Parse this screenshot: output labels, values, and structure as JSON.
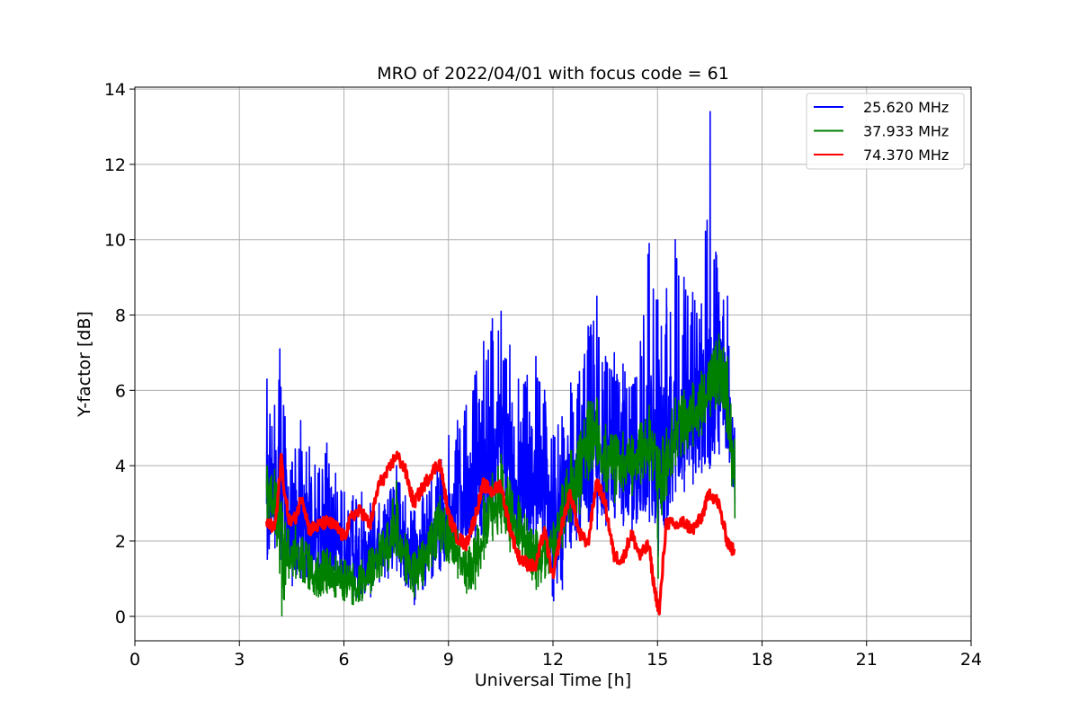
{
  "chart_data": {
    "type": "line",
    "title": "MRO of 2022/04/01 with focus code = 61",
    "xlabel": "Universal Time [h]",
    "ylabel": "Y-factor [dB]",
    "xlim": [
      0,
      24
    ],
    "ylim": [
      -0.65,
      14.05
    ],
    "xticks": [
      0,
      3,
      6,
      9,
      12,
      15,
      18,
      21,
      24
    ],
    "xtick_labels": [
      "0",
      "3",
      "6",
      "9",
      "12",
      "15",
      "18",
      "21",
      "24"
    ],
    "yticks": [
      0,
      2,
      4,
      6,
      8,
      10,
      12,
      14
    ],
    "ytick_labels": [
      "0",
      "2",
      "4",
      "6",
      "8",
      "10",
      "12",
      "14"
    ],
    "grid": true,
    "legend_position": "top-right",
    "series": [
      {
        "name": "25.620 MHz",
        "color": "#0000ff",
        "x": [
          3.78,
          4.0,
          4.15,
          4.3,
          4.5,
          4.75,
          5.0,
          5.25,
          5.5,
          5.75,
          6.0,
          6.25,
          6.5,
          6.75,
          7.0,
          7.25,
          7.5,
          7.75,
          8.0,
          8.25,
          8.5,
          8.75,
          9.0,
          9.25,
          9.5,
          9.75,
          10.0,
          10.25,
          10.5,
          10.75,
          11.0,
          11.25,
          11.5,
          11.75,
          12.0,
          12.25,
          12.5,
          12.75,
          13.0,
          13.25,
          13.5,
          13.75,
          14.0,
          14.25,
          14.5,
          14.75,
          15.0,
          15.25,
          15.5,
          15.75,
          16.0,
          16.25,
          16.5,
          16.75,
          17.0,
          17.2
        ],
        "mid": [
          3.5,
          3.2,
          3.6,
          3.0,
          2.2,
          2.5,
          2.3,
          2.1,
          2.0,
          1.9,
          1.6,
          1.7,
          1.5,
          1.6,
          1.8,
          2.0,
          2.4,
          1.9,
          1.4,
          1.8,
          2.1,
          2.3,
          2.5,
          3.0,
          3.2,
          3.5,
          3.9,
          4.3,
          4.7,
          4.2,
          3.8,
          3.5,
          4.0,
          3.5,
          2.5,
          2.8,
          3.3,
          3.5,
          4.0,
          4.2,
          3.9,
          4.1,
          3.7,
          3.5,
          4.0,
          4.6,
          4.3,
          4.5,
          5.0,
          5.1,
          5.3,
          5.6,
          6.2,
          6.4,
          6.0,
          4.2
        ],
        "low": [
          1.5,
          1.8,
          1.5,
          1.2,
          0.8,
          1.0,
          0.9,
          0.9,
          0.8,
          0.8,
          0.6,
          0.5,
          0.4,
          0.5,
          0.9,
          1.0,
          1.2,
          0.8,
          0.3,
          0.7,
          1.0,
          1.2,
          1.5,
          2.0,
          1.8,
          1.7,
          2.1,
          2.5,
          2.6,
          2.4,
          2.0,
          1.6,
          2.2,
          1.9,
          0.4,
          0.7,
          1.8,
          2.0,
          2.5,
          2.3,
          2.4,
          2.6,
          2.4,
          2.0,
          2.8,
          2.5,
          1.6,
          2.5,
          3.3,
          3.3,
          3.5,
          3.8,
          4.1,
          4.3,
          4.5,
          3.0
        ],
        "high": [
          6.3,
          5.6,
          7.1,
          5.3,
          4.1,
          5.2,
          4.5,
          3.8,
          4.6,
          3.8,
          3.3,
          3.2,
          3.3,
          3.0,
          3.0,
          3.1,
          4.0,
          3.2,
          2.8,
          3.2,
          3.7,
          4.1,
          4.8,
          5.2,
          5.6,
          6.4,
          7.3,
          7.9,
          8.1,
          7.2,
          6.3,
          6.4,
          6.9,
          6.0,
          4.8,
          5.3,
          6.2,
          6.5,
          7.7,
          8.5,
          6.9,
          7.0,
          6.7,
          6.1,
          7.3,
          9.9,
          8.4,
          8.7,
          10.0,
          9.0,
          8.6,
          8.3,
          13.4,
          8.6,
          8.5,
          5.0
        ]
      },
      {
        "name": "37.933 MHz",
        "color": "#008000",
        "x": [
          3.78,
          4.0,
          4.2,
          4.4,
          4.6,
          4.8,
          5.0,
          5.25,
          5.5,
          5.75,
          6.0,
          6.25,
          6.5,
          6.75,
          7.0,
          7.25,
          7.5,
          7.75,
          8.0,
          8.25,
          8.5,
          8.75,
          9.0,
          9.25,
          9.5,
          9.75,
          10.0,
          10.25,
          10.5,
          10.75,
          11.0,
          11.25,
          11.5,
          11.75,
          12.0,
          12.25,
          12.5,
          12.75,
          13.0,
          13.25,
          13.5,
          13.75,
          14.0,
          14.25,
          14.5,
          14.75,
          15.0,
          15.25,
          15.5,
          15.75,
          16.0,
          16.25,
          16.5,
          16.75,
          17.0,
          17.2
        ],
        "mid": [
          3.4,
          3.1,
          2.3,
          1.6,
          1.7,
          1.5,
          1.3,
          1.1,
          1.2,
          1.0,
          0.9,
          0.8,
          0.9,
          1.2,
          1.6,
          1.8,
          2.3,
          1.5,
          1.1,
          1.4,
          1.9,
          2.4,
          2.0,
          1.6,
          1.1,
          1.4,
          2.3,
          2.9,
          3.2,
          2.7,
          2.4,
          1.9,
          1.5,
          1.7,
          1.8,
          2.6,
          3.4,
          3.7,
          4.4,
          4.8,
          4.2,
          3.9,
          4.1,
          4.0,
          4.3,
          4.6,
          3.5,
          4.1,
          4.8,
          5.1,
          5.3,
          5.6,
          6.1,
          6.5,
          5.8,
          3.5
        ],
        "low": [
          2.4,
          2.4,
          0.0,
          1.0,
          1.0,
          0.9,
          0.7,
          0.5,
          0.6,
          0.5,
          0.4,
          0.3,
          0.4,
          0.6,
          1.0,
          1.2,
          1.6,
          0.9,
          0.5,
          0.8,
          1.3,
          1.7,
          1.4,
          1.0,
          0.6,
          0.7,
          1.5,
          2.0,
          2.2,
          1.7,
          1.6,
          1.2,
          0.7,
          1.0,
          1.1,
          1.8,
          2.5,
          2.7,
          3.6,
          4.0,
          3.3,
          3.0,
          3.3,
          3.2,
          3.5,
          3.7,
          1.0,
          3.2,
          4.0,
          4.3,
          4.5,
          4.8,
          5.3,
          5.6,
          4.7,
          2.6
        ],
        "high": [
          4.0,
          3.9,
          3.0,
          2.3,
          2.4,
          2.1,
          1.9,
          1.7,
          1.8,
          1.6,
          1.5,
          1.4,
          1.5,
          1.8,
          2.2,
          2.5,
          3.6,
          2.2,
          1.7,
          2.0,
          2.5,
          3.2,
          2.8,
          2.3,
          1.8,
          2.1,
          3.2,
          3.8,
          4.3,
          3.6,
          3.2,
          2.6,
          2.3,
          2.4,
          2.5,
          3.5,
          4.4,
          4.8,
          5.7,
          5.8,
          5.1,
          4.8,
          4.9,
          4.8,
          5.1,
          5.6,
          4.5,
          5.0,
          5.8,
          6.0,
          6.2,
          6.5,
          6.8,
          7.5,
          6.9,
          4.7
        ]
      },
      {
        "name": "74.370 MHz",
        "color": "#ff0000",
        "x": [
          3.78,
          3.9,
          4.0,
          4.1,
          4.2,
          4.3,
          4.45,
          4.6,
          4.8,
          5.0,
          5.25,
          5.5,
          5.75,
          6.0,
          6.25,
          6.5,
          6.75,
          7.0,
          7.25,
          7.5,
          7.75,
          8.0,
          8.25,
          8.5,
          8.75,
          9.0,
          9.25,
          9.5,
          9.75,
          10.0,
          10.25,
          10.5,
          10.75,
          11.0,
          11.25,
          11.5,
          11.75,
          12.0,
          12.25,
          12.5,
          12.75,
          13.0,
          13.25,
          13.5,
          13.75,
          14.0,
          14.25,
          14.5,
          14.75,
          14.9,
          15.05,
          15.25,
          15.5,
          15.75,
          16.0,
          16.25,
          16.5,
          16.75,
          17.0,
          17.2
        ],
        "values": [
          2.5,
          2.4,
          2.3,
          3.0,
          4.3,
          3.2,
          2.5,
          2.6,
          3.2,
          2.3,
          2.4,
          2.5,
          2.4,
          2.1,
          2.7,
          2.8,
          2.4,
          3.5,
          3.8,
          4.3,
          3.9,
          3.0,
          3.4,
          3.8,
          4.1,
          2.7,
          2.1,
          1.9,
          2.6,
          3.5,
          3.3,
          3.5,
          2.4,
          1.6,
          1.4,
          1.3,
          2.3,
          1.0,
          2.4,
          3.3,
          2.2,
          1.9,
          3.6,
          3.0,
          1.6,
          1.5,
          2.2,
          1.6,
          1.9,
          0.8,
          0.1,
          2.5,
          2.4,
          2.5,
          2.3,
          2.6,
          3.3,
          3.0,
          2.0,
          1.7
        ]
      }
    ]
  }
}
